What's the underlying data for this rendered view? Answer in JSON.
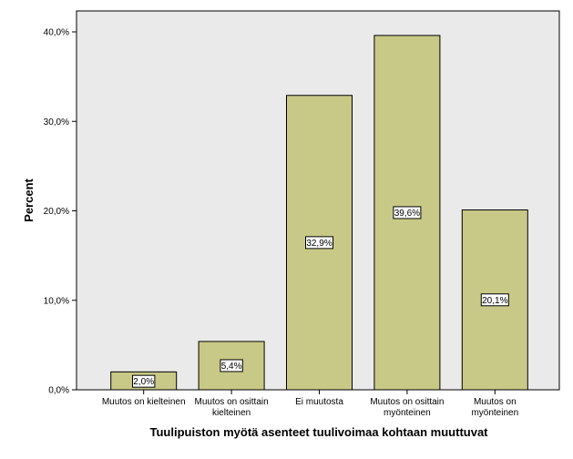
{
  "chart_data": {
    "type": "bar",
    "categories": [
      [
        "Muutos on kielteinen"
      ],
      [
        "Muutos on osittain",
        "kielteinen"
      ],
      [
        "Ei muutosta"
      ],
      [
        "Muutos on osittain",
        "myönteinen"
      ],
      [
        "Muutos on",
        "myönteinen"
      ]
    ],
    "values": [
      2.0,
      5.4,
      32.9,
      39.6,
      20.1
    ],
    "data_labels": [
      "2,0%",
      "5,4%",
      "32,9%",
      "39,6%",
      "20,1%"
    ],
    "y_ticks": [
      0,
      10,
      20,
      30,
      40
    ],
    "y_tick_labels": [
      "0,0%",
      "10,0%",
      "20,0%",
      "30,0%",
      "40,0%"
    ],
    "ylim": [
      0,
      40.0
    ],
    "xlabel": "Tuulipuiston myötä asenteet tuulivoimaa kohtaan muuttuvat",
    "ylabel": "Percent",
    "grid": false,
    "colors": {
      "bar_fill": "#c8c987",
      "bar_stroke": "#000000",
      "plot_background": "#eaeaea"
    }
  }
}
